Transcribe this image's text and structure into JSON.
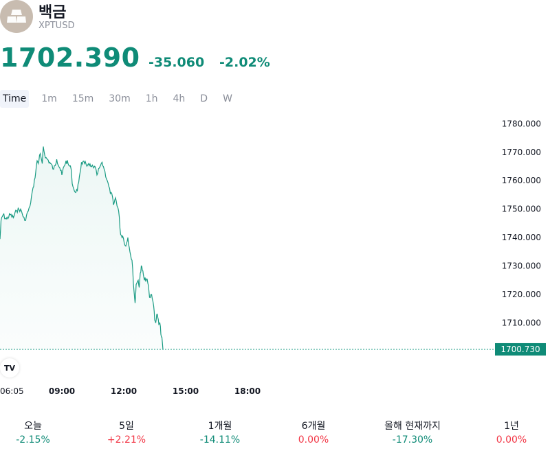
{
  "symbol": {
    "name": "백금",
    "ticker": "XPTUSD",
    "icon": "gold-bars-icon"
  },
  "quote": {
    "price": "1702.390",
    "change": "-35.060",
    "change_pct": "-2.02%"
  },
  "colors": {
    "accent": "#0f8b77",
    "negative_red": "#f23645",
    "muted": "#8a8e99",
    "line": "#1a9b83"
  },
  "timeframes": {
    "active": "Time",
    "items": [
      "Time",
      "1m",
      "15m",
      "30m",
      "1h",
      "4h",
      "D",
      "W"
    ]
  },
  "chart_data": {
    "type": "area",
    "x_ticks": [
      "06:05",
      "09:00",
      "12:00",
      "15:00",
      "18:00"
    ],
    "y_ticks": [
      "1780.000",
      "1770.000",
      "1760.000",
      "1750.000",
      "1740.000",
      "1730.000",
      "1720.000",
      "1710.000"
    ],
    "ylim": [
      1700,
      1782
    ],
    "last_value_label": "1700.730",
    "last_value": 1700.73,
    "series": [
      {
        "x": [
          0,
          0.05,
          0.15,
          0.3,
          0.5,
          0.65,
          0.8,
          1.0,
          1.2,
          1.45,
          1.6,
          1.7,
          1.8,
          1.85,
          1.95,
          2.05,
          2.1,
          2.2,
          2.3,
          2.45,
          2.6,
          2.75,
          2.9,
          3.0,
          3.1,
          3.2,
          3.3,
          3.45,
          3.5,
          3.6,
          3.75,
          3.85,
          3.95,
          4.1,
          4.25,
          4.4,
          4.55,
          4.6,
          4.7,
          4.85,
          4.95,
          5.05,
          5.2,
          5.35,
          5.45,
          5.5,
          5.6,
          5.75,
          5.85,
          5.95,
          6.1,
          6.2,
          6.3,
          6.4,
          6.5,
          6.55,
          6.6,
          6.7,
          6.75,
          6.8,
          6.85,
          6.9,
          6.95
        ],
        "values": [
          1739.5,
          1746.0,
          1748.0,
          1746.5,
          1748.0,
          1747.0,
          1749.5,
          1750.0,
          1746.0,
          1751.0,
          1757.5,
          1761.0,
          1767.0,
          1766.0,
          1769.5,
          1766.0,
          1772.0,
          1768.0,
          1767.5,
          1766.0,
          1764.0,
          1767.5,
          1764.5,
          1762.0,
          1765.0,
          1767.0,
          1766.0,
          1764.0,
          1759.0,
          1756.5,
          1756.5,
          1761.5,
          1766.5,
          1766.0,
          1765.5,
          1765.0,
          1764.5,
          1765.0,
          1762.0,
          1765.0,
          1766.5,
          1764.0,
          1760.0,
          1755.5,
          1754.5,
          1751.5,
          1754.0,
          1749.5,
          1741.0,
          1740.5,
          1737.0,
          1740.0,
          1735.0,
          1732.0,
          1721.0,
          1717.0,
          1723.5,
          1725.0,
          1722.5,
          1727.5,
          1730.0,
          1728.5,
          1727.0
        ]
      }
    ]
  },
  "chart_tail": {
    "x": [
      7.0,
      7.1,
      7.2,
      7.25,
      7.35,
      7.45,
      7.5,
      7.55,
      7.6,
      7.65,
      7.7,
      7.75,
      7.8,
      7.85,
      7.9
    ],
    "values": [
      1725.0,
      1725.5,
      1723.0,
      1719.0,
      1720.0,
      1716.0,
      1711.0,
      1710.0,
      1713.0,
      1712.0,
      1709.5,
      1710.0,
      1706.0,
      1705.0,
      1700.7
    ]
  },
  "x_tick_positions_hours": [
    0,
    3.0,
    6.0,
    9.0,
    12.0
  ],
  "tradingview_badge": "TV",
  "performance": [
    {
      "label": "오늘",
      "value": "-2.15%",
      "color": "#0f8b77"
    },
    {
      "label": "5일",
      "value": "+2.21%",
      "color": "#f23645"
    },
    {
      "label": "1개월",
      "value": "-14.11%",
      "color": "#0f8b77"
    },
    {
      "label": "6개월",
      "value": "0.00%",
      "color": "#f23645"
    },
    {
      "label": "올해 현재까지",
      "value": "-17.30%",
      "color": "#0f8b77"
    },
    {
      "label": "1년",
      "value": "0.00%",
      "color": "#f23645"
    }
  ]
}
